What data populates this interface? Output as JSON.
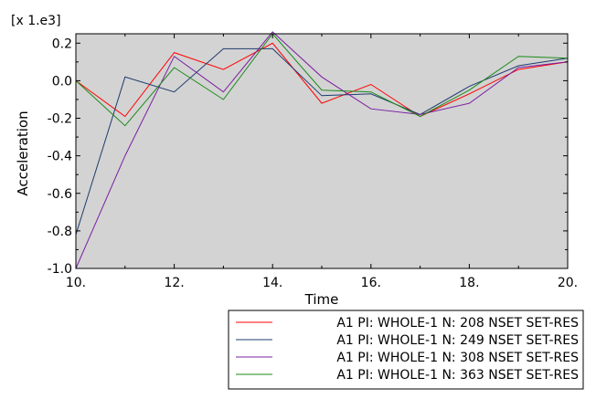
{
  "chart_data": {
    "type": "line",
    "multiplier_label": "[x 1.e3]",
    "xlabel": "Time",
    "ylabel": "Acceleration",
    "xlim": [
      10,
      20
    ],
    "ylim": [
      -1.0,
      0.25
    ],
    "x_ticks": [
      10,
      12,
      14,
      16,
      18,
      20
    ],
    "x_tick_labels": [
      "10.",
      "12.",
      "14.",
      "16.",
      "18.",
      "20."
    ],
    "y_ticks": [
      -1.0,
      -0.8,
      -0.6,
      -0.4,
      -0.2,
      0.0,
      0.2
    ],
    "y_tick_labels": [
      "-1.0",
      "-0.8",
      "-0.6",
      "-0.4",
      "-0.2",
      "0.0",
      "0.2"
    ],
    "grid": false,
    "legend_position": "bottom-right-outside",
    "plot_background": "#d3d3d3",
    "x": [
      10,
      11,
      12,
      13,
      14,
      15,
      16,
      17,
      18,
      19,
      20
    ],
    "series": [
      {
        "name": "A1 PI: WHOLE-1 N: 208 NSET SET-RES",
        "color": "#ff0000",
        "values": [
          0.0,
          -0.19,
          0.15,
          0.06,
          0.2,
          -0.12,
          -0.02,
          -0.19,
          -0.07,
          0.06,
          0.1
        ]
      },
      {
        "name": "A1 PI: WHOLE-1 N: 249 NSET SET-RES",
        "color": "#1f3c6e",
        "values": [
          -0.82,
          0.02,
          -0.06,
          0.17,
          0.17,
          -0.08,
          -0.07,
          -0.18,
          -0.03,
          0.08,
          0.12
        ]
      },
      {
        "name": "A1 PI: WHOLE-1 N: 308 NSET SET-RES",
        "color": "#7a1fa2",
        "values": [
          -1.0,
          -0.4,
          0.13,
          -0.06,
          0.26,
          0.02,
          -0.15,
          -0.18,
          -0.12,
          0.07,
          0.1
        ]
      },
      {
        "name": "A1 PI: WHOLE-1 N: 363 NSET SET-RES",
        "color": "#1a8a1a",
        "values": [
          0.0,
          -0.24,
          0.07,
          -0.1,
          0.25,
          -0.05,
          -0.06,
          -0.19,
          -0.05,
          0.13,
          0.12
        ]
      }
    ]
  }
}
